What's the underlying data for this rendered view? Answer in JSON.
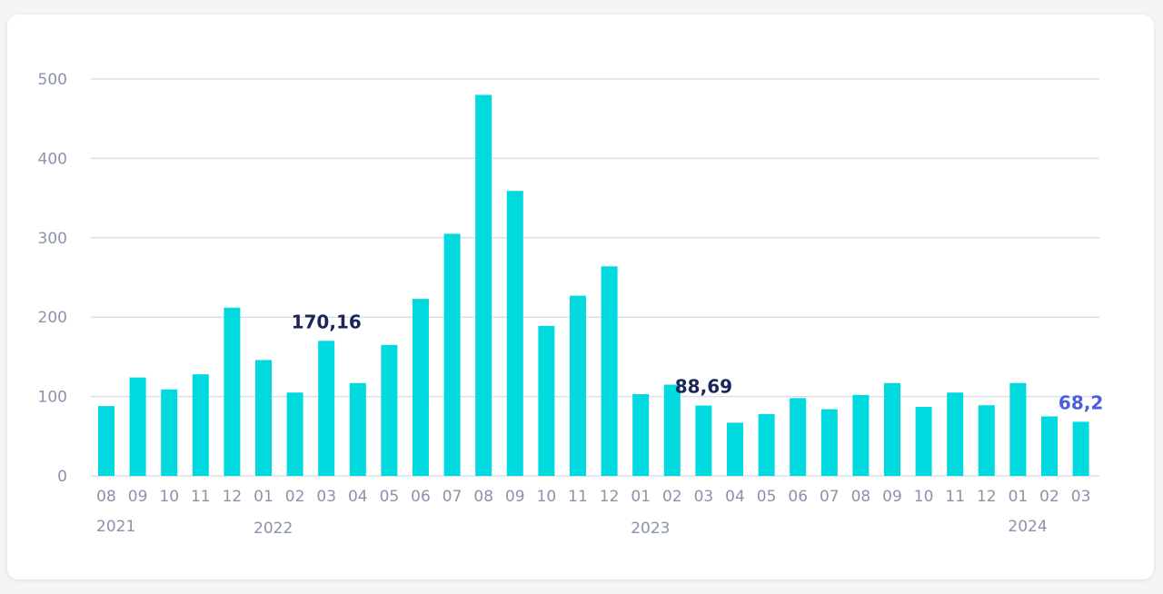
{
  "chart_data": {
    "type": "bar",
    "categories": [
      "08",
      "09",
      "10",
      "11",
      "12",
      "01",
      "02",
      "03",
      "04",
      "05",
      "06",
      "07",
      "08",
      "09",
      "10",
      "11",
      "12",
      "01",
      "02",
      "03",
      "04",
      "05",
      "06",
      "07",
      "08",
      "09",
      "10",
      "11",
      "12",
      "01",
      "02",
      "03"
    ],
    "values": [
      88,
      124,
      109,
      128,
      212,
      146,
      105,
      170.16,
      117,
      165,
      223,
      305,
      480,
      359,
      189,
      227,
      264,
      103,
      115,
      88.69,
      67,
      78,
      98,
      84,
      102,
      117,
      87,
      105,
      89,
      117,
      75,
      68.2
    ],
    "year_labels": [
      {
        "label": "2021",
        "index": 0
      },
      {
        "label": "2022",
        "index": 5
      },
      {
        "label": "2023",
        "index": 17
      },
      {
        "label": "2024",
        "index": 29
      }
    ],
    "yticks": [
      0,
      100,
      200,
      300,
      400,
      500
    ],
    "ylim": [
      0,
      500
    ],
    "title": "",
    "xlabel": "",
    "ylabel": "",
    "grid": true,
    "bar_color": "#00d9de",
    "annotations": [
      {
        "index": 7,
        "text": "170,16",
        "color": "#1b2559"
      },
      {
        "index": 19,
        "text": "88,69",
        "color": "#1b2559"
      },
      {
        "index": 31,
        "text": "68,2",
        "color": "#4c5ee0"
      }
    ]
  }
}
